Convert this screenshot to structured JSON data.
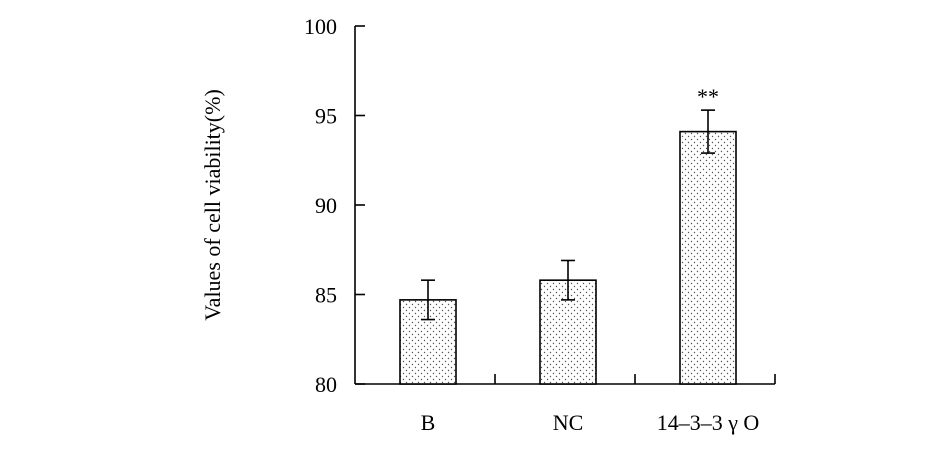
{
  "chart_data": {
    "type": "bar",
    "categories": [
      "B",
      "NC",
      "14–3–3 γ O"
    ],
    "values": [
      84.7,
      85.8,
      94.1
    ],
    "errors": [
      1.1,
      1.1,
      1.2
    ],
    "annotations": [
      "",
      "",
      "**"
    ],
    "title": "",
    "xlabel": "",
    "ylabel": "Values of cell viability(%)",
    "ylim": [
      80,
      100
    ],
    "yticks": [
      80,
      85,
      90,
      95,
      100
    ],
    "grid": false,
    "bar_fill": "dotted"
  }
}
